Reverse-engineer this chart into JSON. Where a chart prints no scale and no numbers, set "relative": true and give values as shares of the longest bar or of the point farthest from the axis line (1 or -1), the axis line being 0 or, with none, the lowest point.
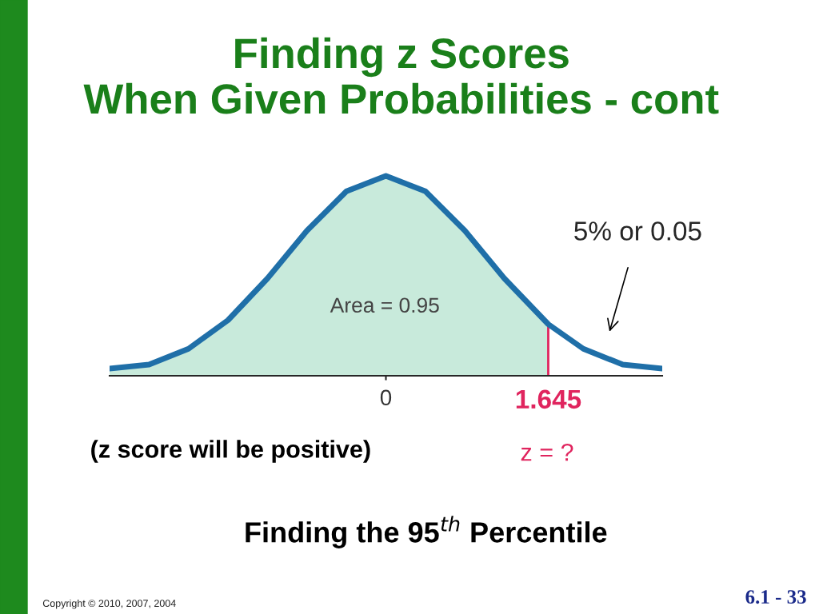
{
  "chart_data": {
    "type": "area",
    "relative": true,
    "title": "Finding z Scores\nWhen Given Probabilities - cont",
    "series": [
      {
        "color": "#c8eadb",
        "x": [
          -2.8,
          -2.4,
          -2.0,
          -1.6,
          -1.2,
          -0.8,
          -0.4,
          0,
          0.4,
          0.8,
          1.2,
          1.645
        ],
        "values": [
          0.036,
          0.056,
          0.135,
          0.278,
          0.487,
          0.726,
          0.923,
          1,
          0.923,
          0.726,
          0.487,
          0.258
        ]
      },
      {
        "type": "line",
        "color": "#1f6fa8",
        "x": [
          -2.8,
          -2.4,
          -2.0,
          -1.6,
          -1.2,
          -0.8,
          -0.4,
          0,
          0.4,
          0.8,
          1.2,
          1.645,
          2.0,
          2.4,
          2.8
        ],
        "values": [
          0.036,
          0.056,
          0.135,
          0.278,
          0.487,
          0.726,
          0.923,
          1,
          0.923,
          0.726,
          0.487,
          0.258,
          0.135,
          0.056,
          0.036
        ]
      }
    ],
    "xlim": [
      -2.8,
      2.8
    ],
    "xticks": [
      0,
      1.645
    ],
    "ref_lines": [
      {
        "axis": "x",
        "value": 1.645,
        "color": "#e0245e"
      }
    ],
    "annotations": [
      "Area = 0.95",
      "5% or 0.05",
      "(z score will be positive)",
      "z = ?",
      "Finding the 95$^{th}$ Percentile",
      "Copyright © 2010, 2007, 2004",
      "6.1 - 33"
    ]
  }
}
